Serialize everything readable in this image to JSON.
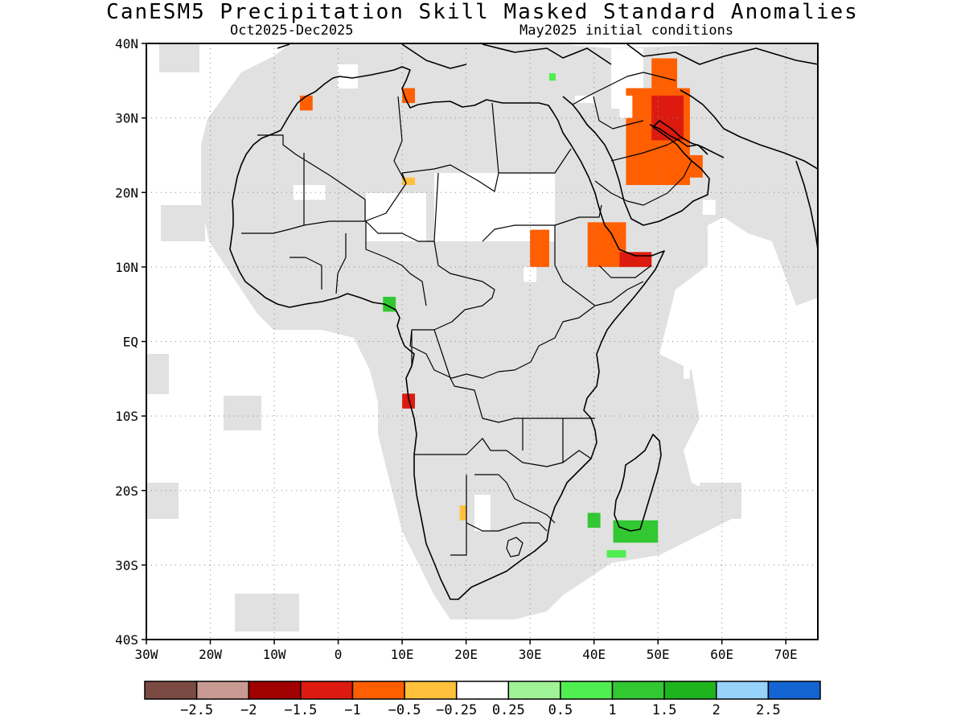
{
  "title": "CanESM5 Precipitation Skill Masked Standard Anomalies",
  "subtitle_left": "Oct2025-Dec2025",
  "subtitle_right": "May2025 initial conditions",
  "map": {
    "region": "Africa and Middle East",
    "lon_range": [
      -30,
      75
    ],
    "lat_range": [
      -40,
      40
    ],
    "grid": "dotted",
    "land_color": "#000000",
    "masked_color": "#e1e1e1",
    "lat_ticks": [
      {
        "value": 40,
        "label": "40N"
      },
      {
        "value": 30,
        "label": "30N"
      },
      {
        "value": 20,
        "label": "20N"
      },
      {
        "value": 10,
        "label": "10N"
      },
      {
        "value": 0,
        "label": "EQ"
      },
      {
        "value": -10,
        "label": "10S"
      },
      {
        "value": -20,
        "label": "20S"
      },
      {
        "value": -30,
        "label": "30S"
      },
      {
        "value": -40,
        "label": "40S"
      }
    ],
    "lon_ticks": [
      {
        "value": -30,
        "label": "30W"
      },
      {
        "value": -20,
        "label": "20W"
      },
      {
        "value": -10,
        "label": "10W"
      },
      {
        "value": 0,
        "label": "0"
      },
      {
        "value": 10,
        "label": "10E"
      },
      {
        "value": 20,
        "label": "20E"
      },
      {
        "value": 30,
        "label": "30E"
      },
      {
        "value": 40,
        "label": "40E"
      },
      {
        "value": 50,
        "label": "50E"
      },
      {
        "value": 60,
        "label": "60E"
      },
      {
        "value": 70,
        "label": "70E"
      }
    ],
    "anomaly_patches": [
      {
        "name": "arabia-east",
        "lon": [
          45,
          55
        ],
        "lat": [
          21,
          34
        ],
        "level": -1.0
      },
      {
        "name": "iraq-core",
        "lon": [
          49,
          54
        ],
        "lat": [
          27,
          33
        ],
        "level": -1.5
      },
      {
        "name": "iran-south",
        "lon": [
          49,
          53
        ],
        "lat": [
          34,
          38
        ],
        "level": -1.0
      },
      {
        "name": "gulf-rim",
        "lon": [
          54,
          57
        ],
        "lat": [
          22,
          25
        ],
        "level": -1.0
      },
      {
        "name": "iraq-west-fringe",
        "lon": [
          44,
          46
        ],
        "lat": [
          30,
          33
        ],
        "level": -0.25
      },
      {
        "name": "red-sea-south",
        "lon": [
          39,
          45
        ],
        "lat": [
          10,
          16
        ],
        "level": -1.0
      },
      {
        "name": "gulf-of-aden",
        "lon": [
          44,
          49
        ],
        "lat": [
          10,
          12
        ],
        "level": -1.5
      },
      {
        "name": "sudan-east",
        "lon": [
          30,
          33
        ],
        "lat": [
          10,
          15
        ],
        "level": -1.0
      },
      {
        "name": "sudan-east-fringe",
        "lon": [
          29,
          31
        ],
        "lat": [
          8,
          10
        ],
        "level": -0.25
      },
      {
        "name": "oman-south",
        "lon": [
          57,
          59
        ],
        "lat": [
          17,
          19
        ],
        "level": -0.25
      },
      {
        "name": "morocco-north",
        "lon": [
          -6,
          -4
        ],
        "lat": [
          31,
          33
        ],
        "level": -1.0
      },
      {
        "name": "tunisia-coast",
        "lon": [
          10,
          12
        ],
        "lat": [
          32,
          34
        ],
        "level": -1.0
      },
      {
        "name": "libya-south",
        "lon": [
          10,
          12
        ],
        "lat": [
          21,
          22
        ],
        "level": -0.5
      },
      {
        "name": "mali-north",
        "lon": [
          -7,
          -2
        ],
        "lat": [
          19,
          21
        ],
        "level": -0.25
      },
      {
        "name": "levant",
        "lon": [
          37,
          40
        ],
        "lat": [
          32,
          33
        ],
        "level": -0.25
      },
      {
        "name": "angola-coast",
        "lon": [
          10,
          12
        ],
        "lat": [
          -9,
          -7
        ],
        "level": -1.5
      },
      {
        "name": "somalia-east",
        "lon": [
          54,
          55
        ],
        "lat": [
          -5,
          -3
        ],
        "level": -0.25
      },
      {
        "name": "botswana-west",
        "lon": [
          19,
          20
        ],
        "lat": [
          -24,
          -22
        ],
        "level": -0.5
      },
      {
        "name": "nigeria-coast",
        "lon": [
          7,
          9
        ],
        "lat": [
          4,
          6
        ],
        "level": 1.0
      },
      {
        "name": "mozambique-channel",
        "lon": [
          39,
          41
        ],
        "lat": [
          -25,
          -23
        ],
        "level": 1.0
      },
      {
        "name": "madagascar-south",
        "lon": [
          43,
          50
        ],
        "lat": [
          -27,
          -24
        ],
        "level": 1.0
      },
      {
        "name": "madagascar-southwest",
        "lon": [
          42,
          45
        ],
        "lat": [
          -29,
          -28
        ],
        "level": 0.5
      },
      {
        "name": "egypt-north",
        "lon": [
          33,
          34
        ],
        "lat": [
          35,
          36
        ],
        "level": 0.5
      }
    ]
  },
  "colorbar": {
    "colors": [
      "#7b4b43",
      "#c99a91",
      "#a00000",
      "#dd1a0f",
      "#ff5f00",
      "#ffc03c",
      "#ffffff",
      "#a0f296",
      "#50ee50",
      "#32c832",
      "#1eb41e",
      "#96d2fa",
      "#1464d2"
    ],
    "labels": [
      "-2.5",
      "-2",
      "-1.5",
      "-1",
      "-0.5",
      "-0.25",
      "0.25",
      "0.5",
      "1",
      "1.5",
      "2",
      "2.5"
    ]
  }
}
